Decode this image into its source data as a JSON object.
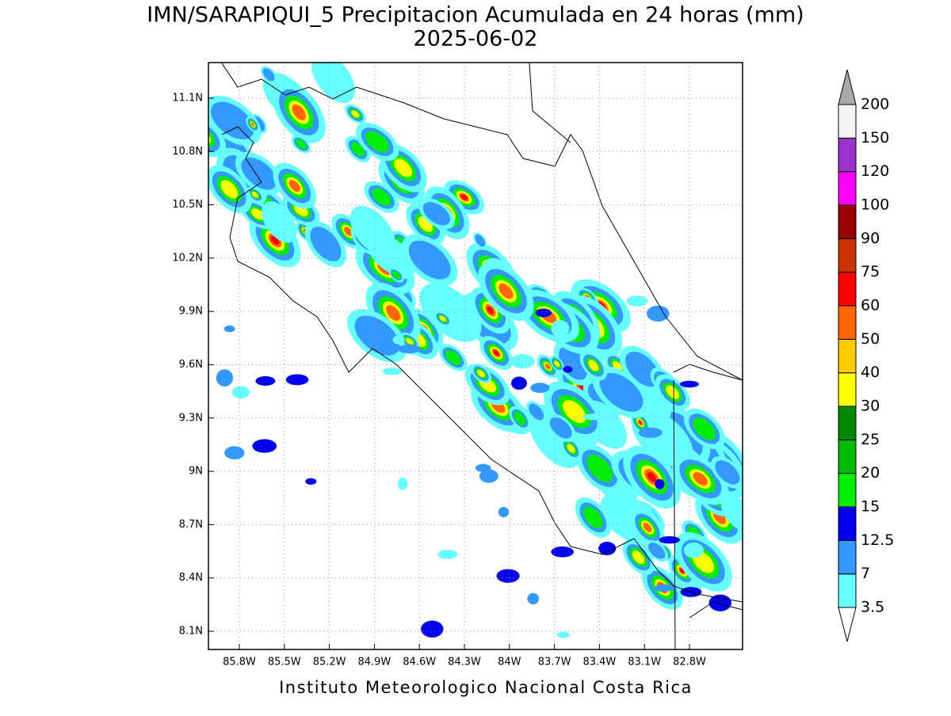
{
  "title": "IMN/SARAPIQUI_5 Precipitacion Acumulada en 24 horas (mm)",
  "subtitle": "2025-06-02",
  "map": {
    "lon_labels": [
      "85.8W",
      "85.5W",
      "85.2W",
      "84.9W",
      "84.6W",
      "84.3W",
      "84W",
      "83.7W",
      "83.4W",
      "83.1W",
      "82.8W"
    ],
    "lat_labels": [
      "11.1N",
      "10.8N",
      "10.5N",
      "10.2N",
      "9.9N",
      "9.6N",
      "9.3N",
      "9N",
      "8.7N",
      "8.4N",
      "8.1N"
    ]
  },
  "colorbar": {
    "labels": [
      3.5,
      7,
      12.5,
      15,
      20,
      25,
      30,
      40,
      50,
      60,
      75,
      90,
      100,
      120,
      150,
      200
    ],
    "colors": [
      "#66ffff",
      "#3399ff",
      "#0000ee",
      "#00ee00",
      "#00bb00",
      "#008800",
      "#ffff00",
      "#ffcc00",
      "#ff6600",
      "#ff0000",
      "#cc3300",
      "#990000",
      "#ff00ff",
      "#9933cc",
      "#f4f4f4"
    ],
    "over_color": "#aaaaaa",
    "under_color": "#ffffff"
  },
  "footer": "Instituto Meteorologico Nacional Costa Rica"
}
